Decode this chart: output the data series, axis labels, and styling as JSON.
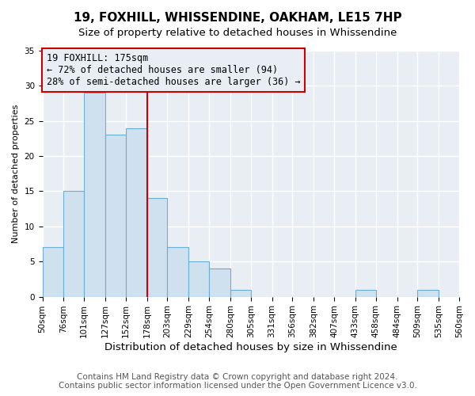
{
  "title": "19, FOXHILL, WHISSENDINE, OAKHAM, LE15 7HP",
  "subtitle": "Size of property relative to detached houses in Whissendine",
  "xlabel": "Distribution of detached houses by size in Whissendine",
  "ylabel": "Number of detached properties",
  "bin_edges": [
    50,
    76,
    101,
    127,
    152,
    178,
    203,
    229,
    254,
    280,
    305,
    331,
    356,
    382,
    407,
    433,
    458,
    484,
    509,
    535,
    560
  ],
  "counts": [
    7,
    15,
    29,
    23,
    24,
    14,
    7,
    5,
    4,
    1,
    0,
    0,
    0,
    0,
    0,
    1,
    0,
    0,
    1,
    0
  ],
  "bar_color": "#cfe0ef",
  "bar_edge_color": "#6aaed6",
  "vline_x": 178,
  "vline_color": "#cc0000",
  "annotation_title": "19 FOXHILL: 175sqm",
  "annotation_line1": "← 72% of detached houses are smaller (94)",
  "annotation_line2": "28% of semi-detached houses are larger (36) →",
  "annotation_box_edgecolor": "#cc0000",
  "ylim": [
    0,
    35
  ],
  "yticks": [
    0,
    5,
    10,
    15,
    20,
    25,
    30,
    35
  ],
  "tick_labels": [
    "50sqm",
    "76sqm",
    "101sqm",
    "127sqm",
    "152sqm",
    "178sqm",
    "203sqm",
    "229sqm",
    "254sqm",
    "280sqm",
    "305sqm",
    "331sqm",
    "356sqm",
    "382sqm",
    "407sqm",
    "433sqm",
    "458sqm",
    "484sqm",
    "509sqm",
    "535sqm",
    "560sqm"
  ],
  "footer_line1": "Contains HM Land Registry data © Crown copyright and database right 2024.",
  "footer_line2": "Contains public sector information licensed under the Open Government Licence v3.0.",
  "plot_bg_color": "#e8eef4",
  "fig_bg_color": "#ffffff",
  "grid_color": "#ffffff",
  "title_fontsize": 11,
  "subtitle_fontsize": 9.5,
  "xlabel_fontsize": 9.5,
  "ylabel_fontsize": 8,
  "tick_fontsize": 7.5,
  "footer_fontsize": 7.5,
  "annot_fontsize": 8.5
}
